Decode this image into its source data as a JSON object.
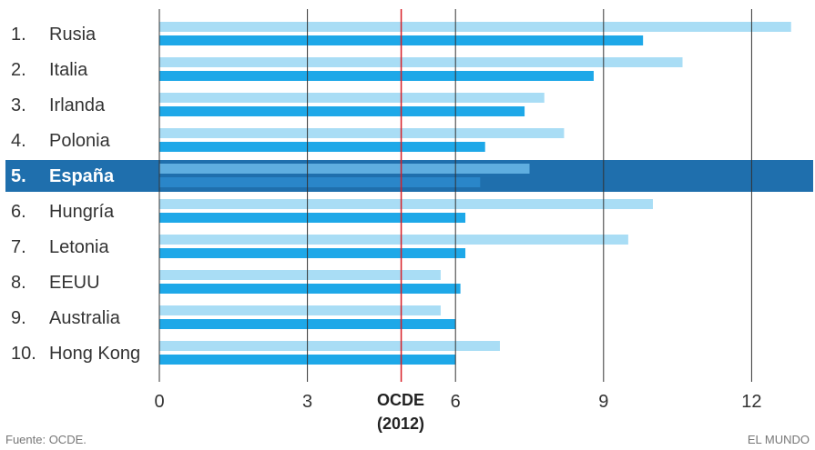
{
  "chart_data": {
    "type": "bar",
    "orientation": "horizontal",
    "ranks": [
      "1.",
      "2.",
      "3.",
      "4.",
      "5.",
      "6.",
      "7.",
      "8.",
      "9.",
      "10."
    ],
    "categories": [
      "Rusia",
      "Italia",
      "Irlanda",
      "Polonia",
      "España",
      "Hungría",
      "Letonia",
      "EEUU",
      "Australia",
      "Hong Kong"
    ],
    "series": [
      {
        "values": [
          12.8,
          10.6,
          7.8,
          8.2,
          7.5,
          10.0,
          9.5,
          5.7,
          5.7,
          6.9
        ]
      },
      {
        "values": [
          9.8,
          8.8,
          7.4,
          6.6,
          6.5,
          6.2,
          6.2,
          6.1,
          6.0,
          6.0
        ]
      }
    ],
    "highlight_index": 4,
    "xlim": [
      0,
      13
    ],
    "xticks": [
      {
        "value": 0,
        "label": "0"
      },
      {
        "value": 3,
        "label": "3"
      },
      {
        "value": 6,
        "label": "6"
      },
      {
        "value": 9,
        "label": "9"
      },
      {
        "value": 12,
        "label": "12"
      }
    ],
    "reference_line": {
      "value": 4.9,
      "label_line1": "OCDE",
      "label_line2": "(2012)",
      "color": "#d81e26"
    },
    "grid": true,
    "colors": {
      "series_light": "#a9ddf5",
      "series_dark": "#1ea8e8",
      "highlight_band": "#1f6fad",
      "highlight_light": "#5faee0",
      "highlight_dark": "#2a86c9",
      "gridline": "#333333"
    }
  },
  "footer": {
    "source": "Fuente: OCDE.",
    "brand": "EL MUNDO"
  }
}
